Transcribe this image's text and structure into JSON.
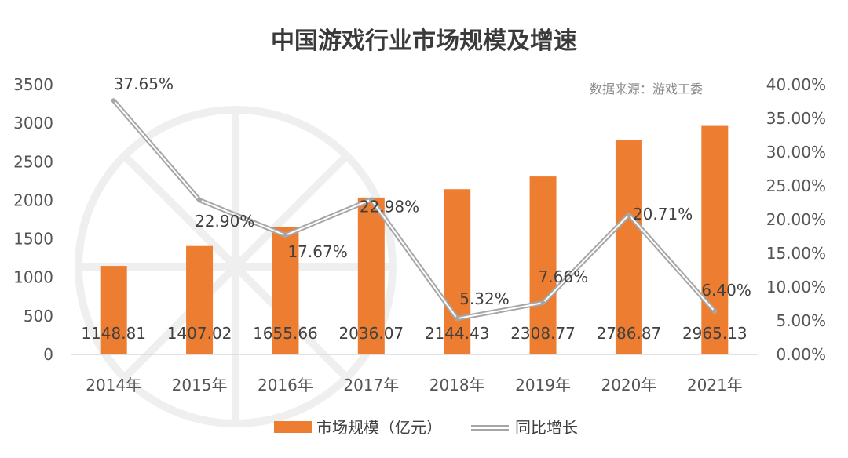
{
  "chart_data": {
    "type": "bar",
    "title": "中国游戏行业市场规模及增速",
    "source_note": "数据来源：游戏工委",
    "categories": [
      "2014年",
      "2015年",
      "2016年",
      "2017年",
      "2018年",
      "2019年",
      "2020年",
      "2021年"
    ],
    "series": [
      {
        "name": "市场规模（亿元）",
        "type": "bar",
        "axis": "left",
        "color": "#ED7D31",
        "values": [
          1148.81,
          1407.02,
          1655.66,
          2036.07,
          2144.43,
          2308.77,
          2786.87,
          2965.13
        ],
        "labels": [
          "1148.81",
          "1407.02",
          "1655.66",
          "2036.07",
          "2144.43",
          "2308.77",
          "2786.87",
          "2965.13"
        ]
      },
      {
        "name": "同比增长",
        "type": "line",
        "axis": "right",
        "color": "#A6A6A6",
        "values": [
          37.65,
          22.9,
          17.67,
          22.98,
          5.32,
          7.66,
          20.71,
          6.4
        ],
        "labels": [
          "37.65%",
          "22.90%",
          "17.67%",
          "22.98%",
          "5.32%",
          "7.66%",
          "20.71%",
          "6.40%"
        ]
      }
    ],
    "y_left": {
      "ylim": [
        0,
        3500
      ],
      "ticks": [
        "0",
        "500",
        "1000",
        "1500",
        "2000",
        "2500",
        "3000",
        "3500"
      ]
    },
    "y_right": {
      "ylim": [
        0,
        40
      ],
      "ticks": [
        "0.00%",
        "5.00%",
        "10.00%",
        "15.00%",
        "20.00%",
        "25.00%",
        "30.00%",
        "35.00%",
        "40.00%"
      ]
    },
    "grid": false,
    "legend_position": "bottom"
  }
}
